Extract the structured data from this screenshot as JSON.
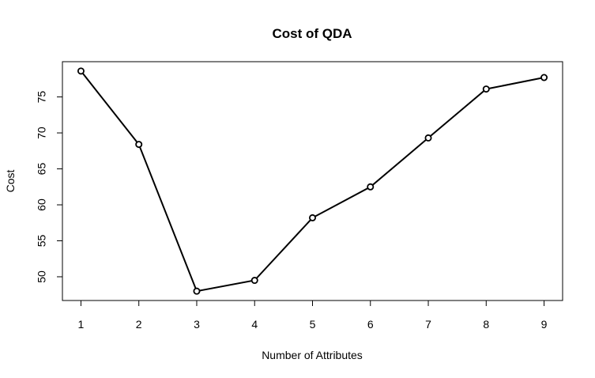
{
  "chart_data": {
    "type": "line",
    "title": "Cost of QDA",
    "xlabel": "Number of Attributes",
    "ylabel": "Cost",
    "x": [
      1,
      2,
      3,
      4,
      5,
      6,
      7,
      8,
      9
    ],
    "series": [
      {
        "values": [
          78.6,
          68.4,
          48.0,
          49.5,
          58.2,
          62.5,
          69.3,
          76.1,
          77.7
        ]
      }
    ],
    "xlim": [
      0.68,
      9.32
    ],
    "ylim": [
      46.7,
      79.9
    ],
    "xticks": [
      1,
      2,
      3,
      4,
      5,
      6,
      7,
      8,
      9
    ],
    "yticks": [
      50,
      55,
      60,
      65,
      70,
      75
    ],
    "grid": false,
    "legend": "none",
    "marker": "open-circle",
    "line_color": "#000000"
  }
}
